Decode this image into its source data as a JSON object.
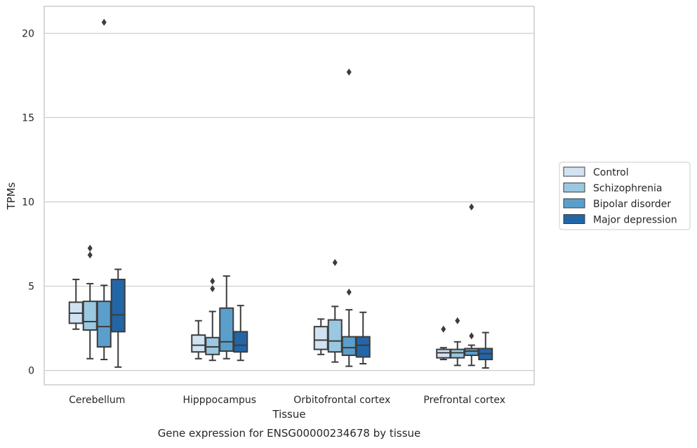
{
  "chart_data": {
    "type": "boxplot",
    "caption": "Gene expression for ENSG00000234678 by tissue",
    "xlabel": "Tissue",
    "ylabel": "TPMs",
    "ylim": [
      -0.85,
      21.6
    ],
    "yticks": [
      0,
      5,
      10,
      15,
      20
    ],
    "grid": "horizontal",
    "legend_placement": "right",
    "categories": [
      "Cerebellum",
      "Hipppocampus",
      "Orbitofrontal cortex",
      "Prefrontal cortex"
    ],
    "series": [
      {
        "name": "Control",
        "color": "#d1e2f2",
        "boxes": [
          {
            "whislo": 2.45,
            "q1": 2.8,
            "med": 3.4,
            "q3": 4.05,
            "whishi": 5.4,
            "fliers": []
          },
          {
            "whislo": 0.7,
            "q1": 1.1,
            "med": 1.5,
            "q3": 2.1,
            "whishi": 2.95,
            "fliers": []
          },
          {
            "whislo": 0.95,
            "q1": 1.25,
            "med": 1.8,
            "q3": 2.6,
            "whishi": 3.05,
            "fliers": []
          },
          {
            "whislo": 0.65,
            "q1": 0.75,
            "med": 1.05,
            "q3": 1.25,
            "whishi": 1.35,
            "fliers": [
              2.45
            ]
          }
        ]
      },
      {
        "name": "Schizophrenia",
        "color": "#9ac8e0",
        "boxes": [
          {
            "whislo": 0.7,
            "q1": 2.4,
            "med": 2.9,
            "q3": 4.1,
            "whishi": 5.15,
            "fliers": [
              6.85,
              7.25
            ]
          },
          {
            "whislo": 0.6,
            "q1": 0.95,
            "med": 1.4,
            "q3": 1.95,
            "whishi": 3.5,
            "fliers": [
              4.85,
              5.3
            ]
          },
          {
            "whislo": 0.5,
            "q1": 1.1,
            "med": 1.75,
            "q3": 3.0,
            "whishi": 3.8,
            "fliers": [
              6.4
            ]
          },
          {
            "whislo": 0.3,
            "q1": 0.75,
            "med": 1.05,
            "q3": 1.25,
            "whishi": 1.7,
            "fliers": [
              2.95
            ]
          }
        ]
      },
      {
        "name": "Bipolar disorder",
        "color": "#5a9fcc",
        "boxes": [
          {
            "whislo": 0.65,
            "q1": 1.4,
            "med": 2.6,
            "q3": 4.1,
            "whishi": 5.05,
            "fliers": [
              20.65
            ]
          },
          {
            "whislo": 0.7,
            "q1": 1.15,
            "med": 1.7,
            "q3": 3.7,
            "whishi": 5.6,
            "fliers": []
          },
          {
            "whislo": 0.25,
            "q1": 0.9,
            "med": 1.35,
            "q3": 2.0,
            "whishi": 3.6,
            "fliers": [
              4.65,
              17.7
            ]
          },
          {
            "whislo": 0.3,
            "q1": 0.9,
            "med": 1.15,
            "q3": 1.3,
            "whishi": 1.5,
            "fliers": [
              2.05,
              9.7
            ]
          }
        ]
      },
      {
        "name": "Major depression",
        "color": "#2266a8",
        "boxes": [
          {
            "whislo": 0.2,
            "q1": 2.3,
            "med": 3.3,
            "q3": 5.4,
            "whishi": 6.0,
            "fliers": []
          },
          {
            "whislo": 0.6,
            "q1": 1.1,
            "med": 1.5,
            "q3": 2.3,
            "whishi": 3.85,
            "fliers": []
          },
          {
            "whislo": 0.4,
            "q1": 0.8,
            "med": 1.5,
            "q3": 2.0,
            "whishi": 3.45,
            "fliers": []
          },
          {
            "whislo": 0.15,
            "q1": 0.65,
            "med": 1.0,
            "q3": 1.3,
            "whishi": 2.25,
            "fliers": []
          }
        ]
      }
    ]
  }
}
